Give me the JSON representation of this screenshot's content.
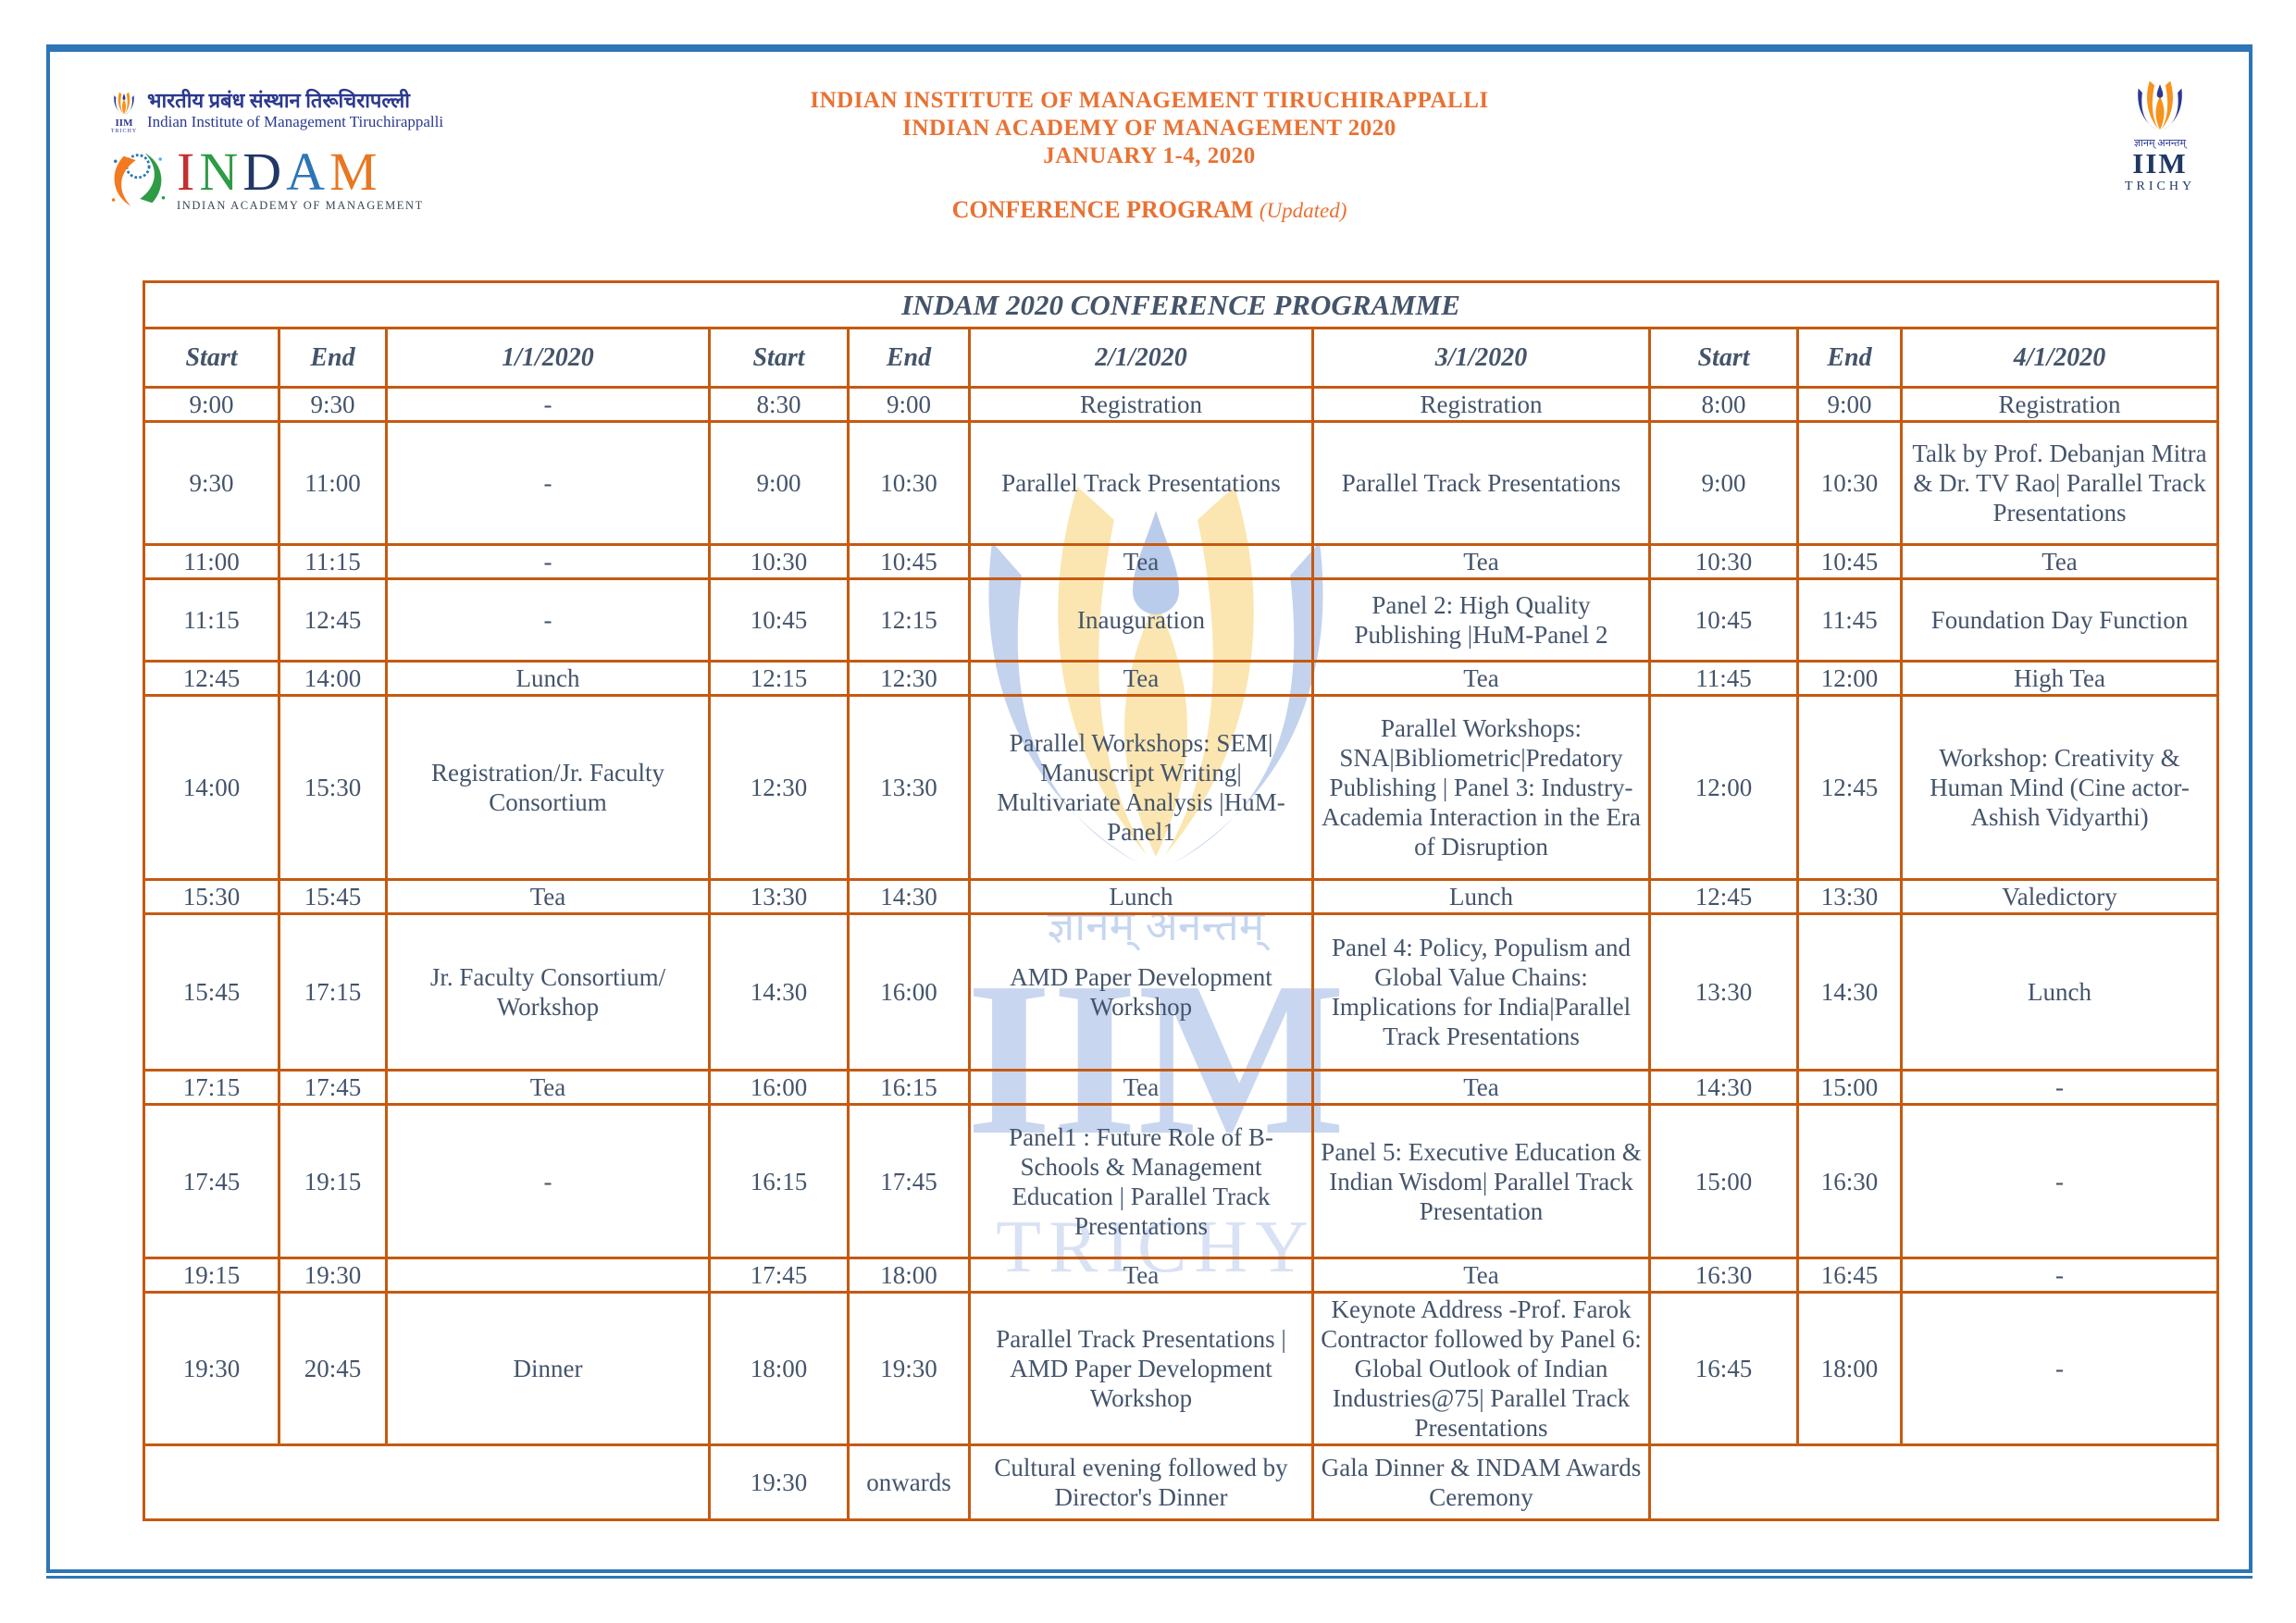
{
  "page": {
    "header": {
      "line1": "INDIAN INSTITUTE OF MANAGEMENT TIRUCHIRAPPALLI",
      "line2": "INDIAN ACADEMY OF MANAGEMENT 2020",
      "line3": "JANUARY 1-4, 2020",
      "program_label": "CONFERENCE PROGRAM",
      "program_note": "(Updated)"
    },
    "logo_left": {
      "hindi_name": "भारतीय प्रबंध संस्थान तिरूचिरापल्ली",
      "english_name": "Indian Institute of Management Tiruchirappalli",
      "iim_small": "IIM",
      "trichy_small": "TRICHY",
      "indam_letters": [
        {
          "ch": "I",
          "color": "#C5302F"
        },
        {
          "ch": "N",
          "color": "#2E9B47"
        },
        {
          "ch": "D",
          "color": "#1F3864"
        },
        {
          "ch": "A",
          "color": "#2E75B6"
        },
        {
          "ch": "M",
          "color": "#E87722"
        }
      ],
      "indam_caption": "INDIAN ACADEMY OF MANAGEMENT"
    },
    "logo_right": {
      "motto": "ज्ञानम् अनन्तम्",
      "iim": "IIM",
      "trichy": "TRICHY"
    },
    "watermark": {
      "motto": "ज्ञानम् अनन्तम्",
      "iim": "IIM",
      "trichy": "TRICHY"
    },
    "colors": {
      "accent_orange_text": "#E97132",
      "table_border_orange": "#C55A11",
      "frame_blue": "#2E75B6",
      "body_text_navy": "#44546A"
    }
  },
  "table": {
    "title": "INDAM 2020 CONFERENCE PROGRAMME",
    "columns": [
      "Start",
      "End",
      "1/1/2020",
      "Start",
      "End",
      "2/1/2020",
      "3/1/2020",
      "Start",
      "End",
      "4/1/2020"
    ],
    "rows": [
      {
        "cells": [
          {
            "t": "9:00"
          },
          {
            "t": "9:30"
          },
          {
            "t": "-"
          },
          {
            "t": "8:30"
          },
          {
            "t": "9:00"
          },
          {
            "t": "Registration"
          },
          {
            "t": "Registration"
          },
          {
            "t": "8:00"
          },
          {
            "t": "9:00"
          },
          {
            "t": "Registration"
          }
        ]
      },
      {
        "cells": [
          {
            "t": "9:30"
          },
          {
            "t": "11:00"
          },
          {
            "t": "-"
          },
          {
            "t": "9:00"
          },
          {
            "t": "10:30"
          },
          {
            "t": "Parallel Track Presentations"
          },
          {
            "t": "Parallel Track Presentations"
          },
          {
            "t": "9:00"
          },
          {
            "t": "10:30"
          },
          {
            "t": "Talk by Prof. Debanjan Mitra & Dr. TV Rao| Parallel Track Presentations"
          }
        ]
      },
      {
        "cells": [
          {
            "t": "11:00"
          },
          {
            "t": "11:15"
          },
          {
            "t": "-"
          },
          {
            "t": "10:30"
          },
          {
            "t": "10:45"
          },
          {
            "t": "Tea"
          },
          {
            "t": "Tea"
          },
          {
            "t": "10:30"
          },
          {
            "t": "10:45"
          },
          {
            "t": "Tea"
          }
        ]
      },
      {
        "cells": [
          {
            "t": "11:15"
          },
          {
            "t": "12:45"
          },
          {
            "t": "-"
          },
          {
            "t": "10:45"
          },
          {
            "t": "12:15"
          },
          {
            "t": "Inauguration"
          },
          {
            "t": "Panel 2: High Quality Publishing |HuM-Panel 2"
          },
          {
            "t": "10:45"
          },
          {
            "t": "11:45"
          },
          {
            "t": "Foundation Day Function"
          }
        ]
      },
      {
        "cells": [
          {
            "t": "12:45"
          },
          {
            "t": "14:00"
          },
          {
            "t": "Lunch"
          },
          {
            "t": "12:15"
          },
          {
            "t": "12:30"
          },
          {
            "t": "Tea"
          },
          {
            "t": "Tea"
          },
          {
            "t": "11:45"
          },
          {
            "t": "12:00"
          },
          {
            "t": "High Tea"
          }
        ]
      },
      {
        "cells": [
          {
            "t": "14:00"
          },
          {
            "t": "15:30"
          },
          {
            "t": "Registration/Jr. Faculty Consortium"
          },
          {
            "t": "12:30"
          },
          {
            "t": "13:30"
          },
          {
            "t": "Parallel Workshops: SEM| Manuscript Writing| Multivariate Analysis |HuM-Panel1"
          },
          {
            "t": "Parallel Workshops: SNA|Bibliometric|Predatory Publishing | Panel 3: Industry-Academia Interaction in the Era of Disruption"
          },
          {
            "t": "12:00"
          },
          {
            "t": "12:45"
          },
          {
            "t": "Workshop: Creativity & Human Mind (Cine actor-Ashish Vidyarthi)"
          }
        ]
      },
      {
        "cells": [
          {
            "t": "15:30"
          },
          {
            "t": "15:45"
          },
          {
            "t": "Tea"
          },
          {
            "t": "13:30"
          },
          {
            "t": "14:30"
          },
          {
            "t": "Lunch"
          },
          {
            "t": "Lunch"
          },
          {
            "t": "12:45"
          },
          {
            "t": "13:30"
          },
          {
            "t": "Valedictory"
          }
        ]
      },
      {
        "cells": [
          {
            "t": "15:45"
          },
          {
            "t": "17:15"
          },
          {
            "t": "Jr. Faculty Consortium/ Workshop"
          },
          {
            "t": "14:30"
          },
          {
            "t": "16:00"
          },
          {
            "t": "AMD Paper Development Workshop"
          },
          {
            "t": "Panel 4: Policy, Populism and Global Value Chains: Implications for India|Parallel Track Presentations"
          },
          {
            "t": "13:30"
          },
          {
            "t": "14:30"
          },
          {
            "t": "Lunch"
          }
        ]
      },
      {
        "cells": [
          {
            "t": "17:15"
          },
          {
            "t": "17:45"
          },
          {
            "t": "Tea"
          },
          {
            "t": "16:00"
          },
          {
            "t": "16:15"
          },
          {
            "t": "Tea"
          },
          {
            "t": "Tea"
          },
          {
            "t": "14:30"
          },
          {
            "t": "15:00"
          },
          {
            "t": "-"
          }
        ]
      },
      {
        "cells": [
          {
            "t": "17:45"
          },
          {
            "t": "19:15"
          },
          {
            "t": "-"
          },
          {
            "t": "16:15"
          },
          {
            "t": "17:45"
          },
          {
            "t": "Panel1 : Future Role of B-Schools & Management Education | Parallel Track Presentations"
          },
          {
            "t": "Panel 5: Executive Education & Indian Wisdom| Parallel Track Presentation"
          },
          {
            "t": "15:00"
          },
          {
            "t": "16:30"
          },
          {
            "t": "-"
          }
        ]
      },
      {
        "cells": [
          {
            "t": "19:15"
          },
          {
            "t": "19:30"
          },
          {
            "t": ""
          },
          {
            "t": "17:45"
          },
          {
            "t": "18:00"
          },
          {
            "t": "Tea"
          },
          {
            "t": "Tea"
          },
          {
            "t": "16:30"
          },
          {
            "t": "16:45"
          },
          {
            "t": "-"
          }
        ]
      },
      {
        "cells": [
          {
            "t": "19:30"
          },
          {
            "t": "20:45"
          },
          {
            "t": "Dinner"
          },
          {
            "t": "18:00"
          },
          {
            "t": "19:30"
          },
          {
            "t": "Parallel Track Presentations | AMD Paper Development Workshop"
          },
          {
            "t": "Keynote Address -Prof. Farok Contractor followed by Panel 6: Global Outlook of Indian Industries@75| Parallel Track Presentations"
          },
          {
            "t": "16:45"
          },
          {
            "t": "18:00"
          },
          {
            "t": "-"
          }
        ]
      },
      {
        "cells": [
          {
            "t": "",
            "cs": 3
          },
          {
            "t": "19:30"
          },
          {
            "t": "onwards"
          },
          {
            "t": "Cultural evening followed by Director's Dinner"
          },
          {
            "t": "Gala Dinner & INDAM Awards Ceremony"
          },
          {
            "t": "",
            "cs": 3
          }
        ]
      }
    ]
  }
}
